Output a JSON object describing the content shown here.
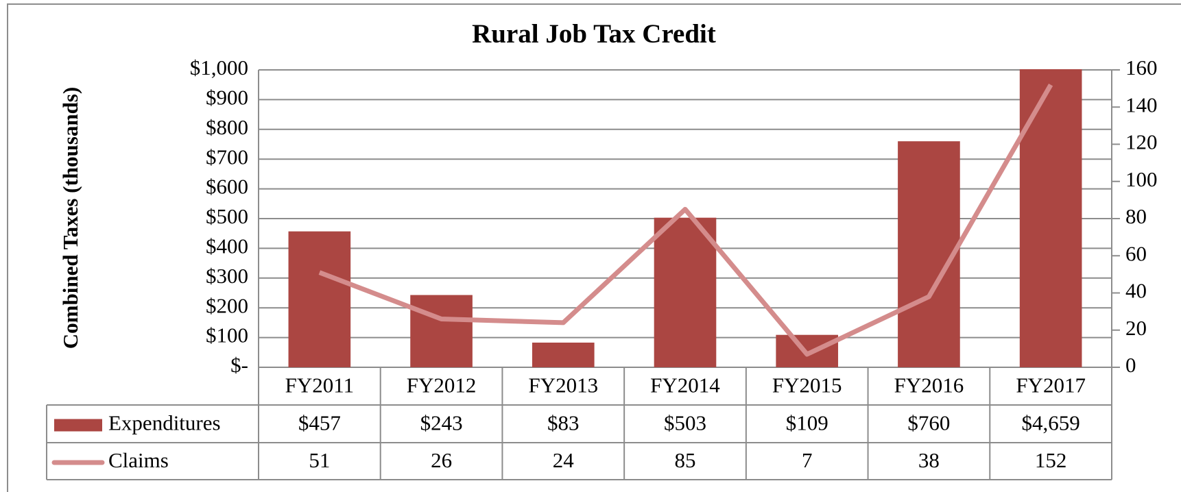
{
  "chart_data": {
    "type": "bar",
    "title": "Rural Job Tax Credit",
    "y_label": "Combined Taxes (thousands)",
    "categories": [
      "FY2011",
      "FY2012",
      "FY2013",
      "FY2014",
      "FY2015",
      "FY2016",
      "FY2017"
    ],
    "series": [
      {
        "name": "Expenditures",
        "type": "bar",
        "color": "#ab4642",
        "values": [
          457,
          243,
          83,
          503,
          109,
          760,
          4659
        ],
        "value_labels": [
          "$457",
          "$243",
          "$83",
          "$503",
          "$109",
          "$760",
          "$4,659"
        ]
      },
      {
        "name": "Claims",
        "type": "line",
        "color": "#d48c8c",
        "axis": "y2",
        "values": [
          51,
          26,
          24,
          85,
          7,
          38,
          152
        ]
      }
    ],
    "ylim": [
      0,
      1000
    ],
    "yticks": [
      {
        "value": 0,
        "label": "$-"
      },
      {
        "value": 100,
        "label": "$100"
      },
      {
        "value": 200,
        "label": "$200"
      },
      {
        "value": 300,
        "label": "$300"
      },
      {
        "value": 400,
        "label": "$400"
      },
      {
        "value": 500,
        "label": "$500"
      },
      {
        "value": 600,
        "label": "$600"
      },
      {
        "value": 700,
        "label": "$700"
      },
      {
        "value": 800,
        "label": "$800"
      },
      {
        "value": 900,
        "label": "$900"
      },
      {
        "value": 1000,
        "label": "$1,000"
      }
    ],
    "y2lim": [
      0,
      160
    ],
    "y2ticks": [
      0,
      20,
      40,
      60,
      80,
      100,
      120,
      140,
      160
    ],
    "grid": true
  }
}
